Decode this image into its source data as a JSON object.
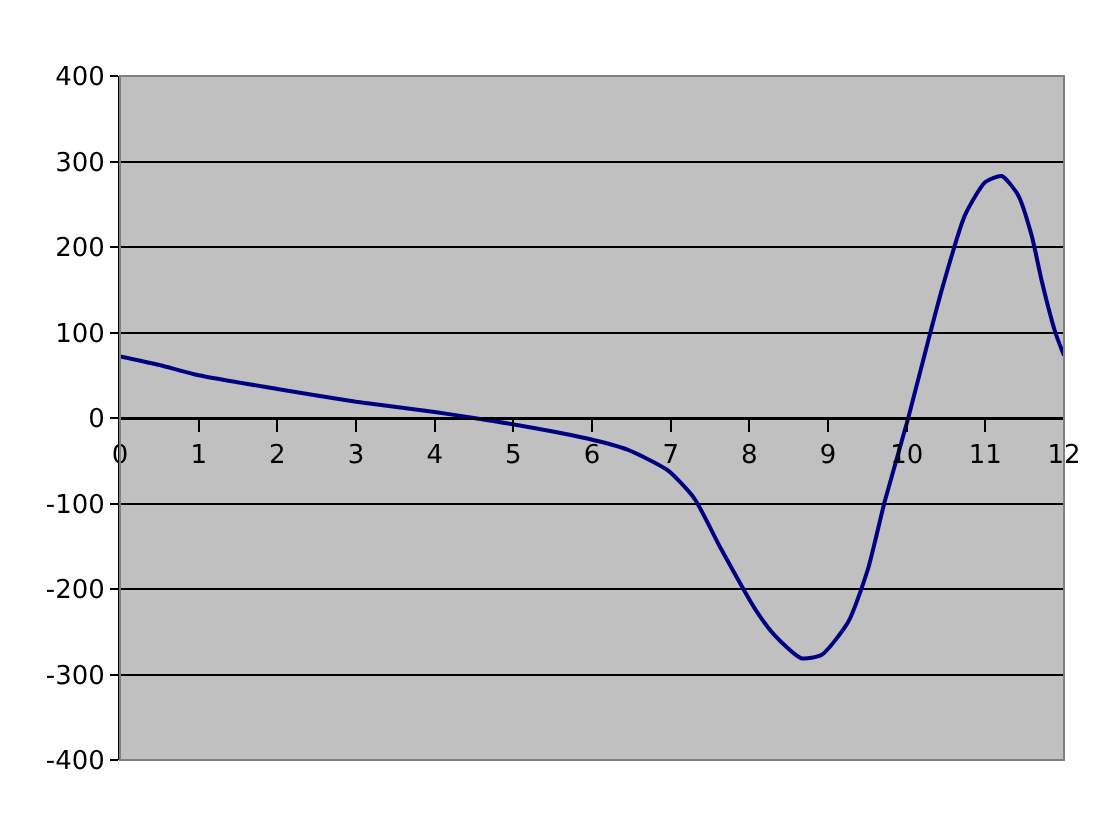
{
  "chart_data": {
    "type": "line",
    "x": [
      0,
      0.5,
      1,
      2,
      3,
      4,
      4.5,
      5.1,
      5.94,
      6.45,
      6.96,
      7.3,
      7.64,
      8.07,
      8.32,
      8.66,
      8.92,
      9.26,
      9.51,
      9.72,
      10.02,
      10.27,
      10.45,
      10.74,
      11.0,
      11.21,
      11.42,
      11.59,
      11.72,
      11.89,
      12
    ],
    "series": [
      {
        "color": "#000080",
        "values": [
          72,
          62,
          50,
          34,
          19,
          7,
          0,
          -9,
          -24,
          -37,
          -61,
          -94,
          -153,
          -223,
          -254,
          -281,
          -277,
          -238,
          -176,
          -98,
          0,
          89,
          151,
          237,
          276,
          283,
          260,
          213,
          159,
          100,
          73
        ]
      }
    ],
    "xlim": [
      0,
      12
    ],
    "xticks": [
      0,
      1,
      2,
      3,
      4,
      5,
      6,
      7,
      8,
      9,
      10,
      11,
      12
    ],
    "ylim": [
      -400,
      400
    ],
    "yticks": [
      -400,
      -300,
      -200,
      -100,
      0,
      100,
      200,
      300,
      400
    ],
    "grid": "y",
    "marker": "none",
    "line_style": "solid"
  }
}
